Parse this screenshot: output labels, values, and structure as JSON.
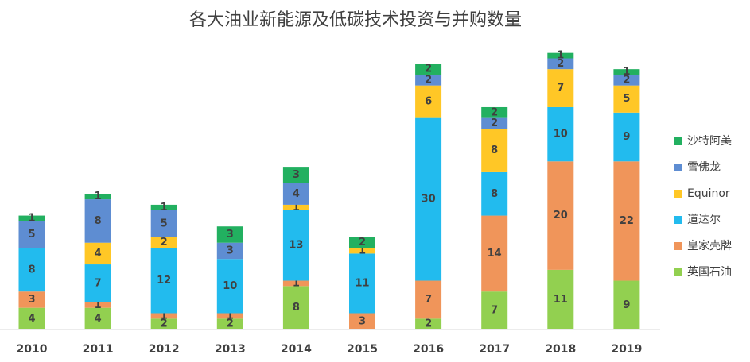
{
  "chart_data": {
    "type": "stacked_bar",
    "title": "各大油业新能源及低碳技术投资与并购数量",
    "categories": [
      "2010",
      "2011",
      "2012",
      "2013",
      "2014",
      "2015",
      "2016",
      "2017",
      "2018",
      "2019"
    ],
    "series": [
      {
        "name": "英国石油",
        "color": "#92d050",
        "values": [
          4,
          4,
          2,
          2,
          8,
          null,
          2,
          7,
          11,
          9
        ]
      },
      {
        "name": "皇家壳牌",
        "color": "#f0955a",
        "values": [
          3,
          1,
          1,
          1,
          1,
          3,
          7,
          14,
          20,
          22
        ]
      },
      {
        "name": "道达尔",
        "color": "#22bbee",
        "values": [
          8,
          7,
          12,
          10,
          13,
          11,
          30,
          8,
          10,
          9
        ]
      },
      {
        "name": "Equinor",
        "color": "#ffc726",
        "values": [
          null,
          4,
          2,
          null,
          1,
          1,
          6,
          8,
          7,
          5
        ]
      },
      {
        "name": "雪佛龙",
        "color": "#5e8dd2",
        "values": [
          5,
          8,
          5,
          3,
          4,
          null,
          2,
          2,
          2,
          2
        ]
      },
      {
        "name": "沙特阿美",
        "color": "#22b060",
        "values": [
          1,
          1,
          1,
          3,
          3,
          2,
          2,
          2,
          1,
          1
        ]
      }
    ]
  }
}
